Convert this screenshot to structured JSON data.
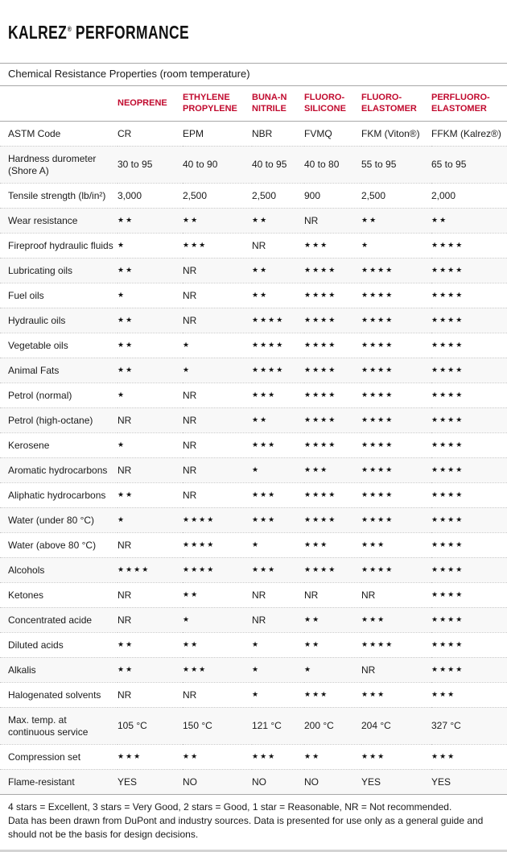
{
  "colors": {
    "column_header_red": "#c10a2e"
  },
  "header": {
    "brand": "KALREZ",
    "reg": "®",
    "suffix": "PERFORMANCE"
  },
  "table": {
    "section_header": "Chemical Resistance Properties (room temperature)",
    "columns": [
      "NEOPRENE",
      "ETHYLENE PROPYLENE",
      "BUNA-N NITRILE",
      "FLUORO-SILICONE",
      "FLUORO-ELASTOMER",
      "PERFLUORO-ELASTOMER"
    ],
    "rows": [
      {
        "label": "ASTM Code",
        "values": [
          "CR",
          "EPM",
          "NBR",
          "FVMQ",
          "FKM (Viton®)",
          "FFKM (Kalrez®)"
        ]
      },
      {
        "label": "Hardness durometer (Shore A)",
        "values": [
          "30 to 95",
          "40 to 90",
          "40 to 95",
          "40 to 80",
          "55 to 95",
          "65 to 95"
        ]
      },
      {
        "label": "Tensile strength (lb/in²)",
        "values": [
          "3,000",
          "2,500",
          "2,500",
          "900",
          "2,500",
          "2,000"
        ]
      },
      {
        "label": "Wear resistance",
        "values": [
          "★★",
          "★★",
          "★★",
          "NR",
          "★★",
          "★★"
        ]
      },
      {
        "label": "Fireproof hydraulic fluids",
        "values": [
          "★",
          "★★★",
          "NR",
          "★★★",
          "★",
          "★★★★"
        ]
      },
      {
        "label": "Lubricating oils",
        "values": [
          "★★",
          "NR",
          "★★",
          "★★★★",
          "★★★★",
          "★★★★"
        ]
      },
      {
        "label": "Fuel oils",
        "values": [
          "★",
          "NR",
          "★★",
          "★★★★",
          "★★★★",
          "★★★★"
        ]
      },
      {
        "label": "Hydraulic oils",
        "values": [
          "★★",
          "NR",
          "★★★★",
          "★★★★",
          "★★★★",
          "★★★★"
        ]
      },
      {
        "label": "Vegetable oils",
        "values": [
          "★★",
          "★",
          "★★★★",
          "★★★★",
          "★★★★",
          "★★★★"
        ]
      },
      {
        "label": "Animal Fats",
        "values": [
          "★★",
          "★",
          "★★★★",
          "★★★★",
          "★★★★",
          "★★★★"
        ]
      },
      {
        "label": "Petrol (normal)",
        "values": [
          "★",
          "NR",
          "★★★",
          "★★★★",
          "★★★★",
          "★★★★"
        ]
      },
      {
        "label": "Petrol (high-octane)",
        "values": [
          "NR",
          "NR",
          "★★",
          "★★★★",
          "★★★★",
          "★★★★"
        ]
      },
      {
        "label": "Kerosene",
        "values": [
          "★",
          "NR",
          "★★★",
          "★★★★",
          "★★★★",
          "★★★★"
        ]
      },
      {
        "label": "Aromatic hydrocarbons",
        "values": [
          "NR",
          "NR",
          "★",
          "★★★",
          "★★★★",
          "★★★★"
        ]
      },
      {
        "label": "Aliphatic hydrocarbons",
        "values": [
          "★★",
          "NR",
          "★★★",
          "★★★★",
          "★★★★",
          "★★★★"
        ]
      },
      {
        "label": "Water (under 80 °C)",
        "values": [
          "★",
          "★★★★",
          "★★★",
          "★★★★",
          "★★★★",
          "★★★★"
        ]
      },
      {
        "label": "Water (above 80 °C)",
        "values": [
          "NR",
          "★★★★",
          "★",
          "★★★",
          "★★★",
          "★★★★"
        ]
      },
      {
        "label": "Alcohols",
        "values": [
          "★★★★",
          "★★★★",
          "★★★",
          "★★★★",
          "★★★★",
          "★★★★"
        ]
      },
      {
        "label": "Ketones",
        "values": [
          "NR",
          "★★",
          "NR",
          "NR",
          "NR",
          "★★★★"
        ]
      },
      {
        "label": "Concentrated acide",
        "values": [
          "NR",
          "★",
          "NR",
          "★★",
          "★★★",
          "★★★★"
        ]
      },
      {
        "label": "Diluted acids",
        "values": [
          "★★",
          "★★",
          "★",
          "★★",
          "★★★★",
          "★★★★"
        ]
      },
      {
        "label": "Alkalis",
        "values": [
          "★★",
          "★★★",
          "★",
          "★",
          "NR",
          "★★★★"
        ]
      },
      {
        "label": "Halogenated solvents",
        "values": [
          "NR",
          "NR",
          "★",
          "★★★",
          "★★★",
          "★★★"
        ]
      },
      {
        "label": "Max. temp. at continuous service",
        "values": [
          "105 °C",
          "150 °C",
          "121 °C",
          "200 °C",
          "204 °C",
          "327 °C"
        ]
      },
      {
        "label": "Compression set",
        "values": [
          "★★★",
          "★★",
          "★★★",
          "★★",
          "★★★",
          "★★★"
        ]
      },
      {
        "label": "Flame-resistant",
        "values": [
          "YES",
          "NO",
          "NO",
          "NO",
          "YES",
          "YES"
        ]
      }
    ]
  },
  "footnotes": {
    "legend": "4 stars = Excellent, 3 stars = Very Good, 2 stars = Good, 1 star = Reasonable, NR = Not recommended.",
    "disclaimer": "Data has been drawn from DuPont and industry sources. Data is presented for use only as a general guide and should not be the basis for design decisions."
  }
}
